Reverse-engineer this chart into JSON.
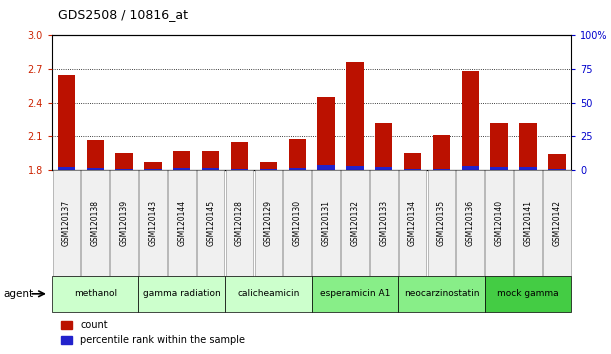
{
  "title": "GDS2508 / 10816_at",
  "samples": [
    "GSM120137",
    "GSM120138",
    "GSM120139",
    "GSM120143",
    "GSM120144",
    "GSM120145",
    "GSM120128",
    "GSM120129",
    "GSM120130",
    "GSM120131",
    "GSM120132",
    "GSM120133",
    "GSM120134",
    "GSM120135",
    "GSM120136",
    "GSM120140",
    "GSM120141",
    "GSM120142"
  ],
  "count_values": [
    2.65,
    2.07,
    1.95,
    1.87,
    1.97,
    1.97,
    2.05,
    1.87,
    2.08,
    2.45,
    2.76,
    2.22,
    1.95,
    2.11,
    2.68,
    2.22,
    2.22,
    1.94
  ],
  "percentile_values": [
    2.0,
    1.5,
    1.0,
    1.0,
    1.5,
    1.5,
    1.0,
    1.0,
    1.5,
    3.5,
    3.0,
    2.5,
    1.0,
    1.0,
    3.0,
    2.5,
    2.0,
    1.0
  ],
  "ylim_left": [
    1.8,
    3.0
  ],
  "ylim_right": [
    0,
    100
  ],
  "yticks_left": [
    1.8,
    2.1,
    2.4,
    2.7,
    3.0
  ],
  "yticks_right": [
    0,
    25,
    50,
    75,
    100
  ],
  "bar_color_count": "#bb1100",
  "bar_color_pct": "#2222cc",
  "agent_groups": [
    {
      "label": "methanol",
      "start": 0,
      "end": 3,
      "color": "#ccffcc"
    },
    {
      "label": "gamma radiation",
      "start": 3,
      "end": 6,
      "color": "#ccffcc"
    },
    {
      "label": "calicheamicin",
      "start": 6,
      "end": 9,
      "color": "#ccffcc"
    },
    {
      "label": "esperamicin A1",
      "start": 9,
      "end": 12,
      "color": "#88ee88"
    },
    {
      "label": "neocarzinostatin",
      "start": 12,
      "end": 15,
      "color": "#88ee88"
    },
    {
      "label": "mock gamma",
      "start": 15,
      "end": 18,
      "color": "#44cc44"
    }
  ],
  "legend_count_label": "count",
  "legend_pct_label": "percentile rank within the sample",
  "agent_label": "agent",
  "bar_width": 0.6,
  "tick_label_color_left": "#cc2200",
  "tick_label_color_right": "#0000cc",
  "bg_color": "#f0f0f0"
}
